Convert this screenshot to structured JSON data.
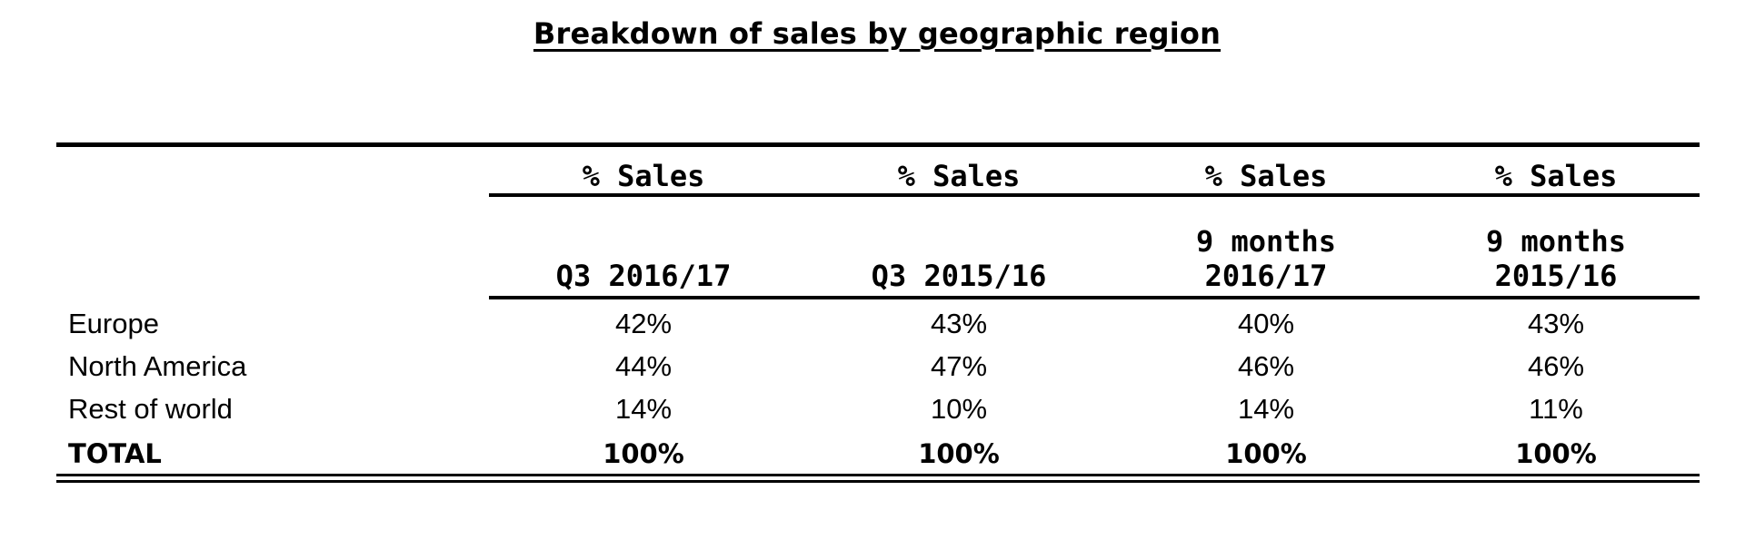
{
  "title": "Breakdown of sales by geographic region",
  "columns": [
    {
      "metric": "% Sales",
      "period_line1": "",
      "period_line2": "Q3 2016/17"
    },
    {
      "metric": "% Sales",
      "period_line1": "",
      "period_line2": "Q3 2015/16"
    },
    {
      "metric": "% Sales",
      "period_line1": "9 months",
      "period_line2": "2016/17"
    },
    {
      "metric": "% Sales",
      "period_line1": "9 months",
      "period_line2": "2015/16"
    }
  ],
  "rows": [
    {
      "label": "Europe",
      "values": [
        "42%",
        "43%",
        "40%",
        "43%"
      ]
    },
    {
      "label": "North America",
      "values": [
        "44%",
        "47%",
        "46%",
        "46%"
      ]
    },
    {
      "label": "Rest of world",
      "values": [
        "14%",
        "10%",
        "14%",
        "11%"
      ]
    },
    {
      "label": "TOTAL",
      "values": [
        "100%",
        "100%",
        "100%",
        "100%"
      ]
    }
  ]
}
